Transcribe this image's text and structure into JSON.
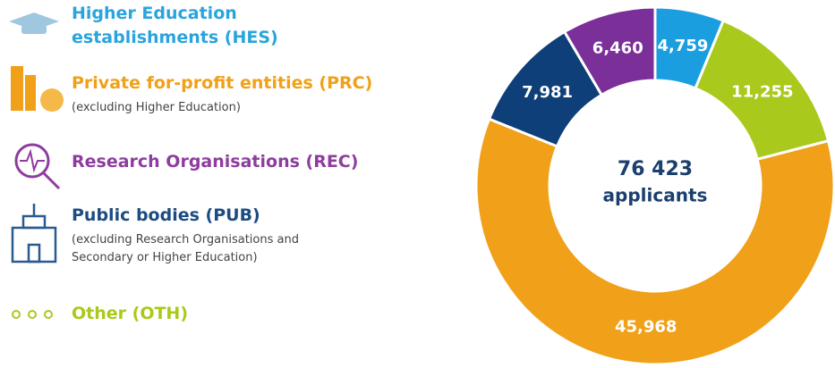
{
  "chart_data": {
    "type": "donut",
    "categories": [
      "Higher Education establishments (HES)",
      "Other (OTH)",
      "Private for-profit entities (PRC)",
      "Public bodies (PUB)",
      "Research Organisations (REC)"
    ],
    "notes": [
      null,
      null,
      "(excluding Higher Education)",
      "(excluding Research Organisations and Secondary or Higher Education)",
      null
    ],
    "values": [
      4759,
      11255,
      45968,
      7981,
      6460
    ],
    "value_labels": [
      "4,759",
      "11,255",
      "45,968",
      "7,981",
      "6,460"
    ],
    "colors": [
      "#1b9ee0",
      "#a9c91c",
      "#f0a019",
      "#0e3f78",
      "#7b2f98"
    ],
    "center_label": [
      "76 423",
      "applicants"
    ]
  }
}
